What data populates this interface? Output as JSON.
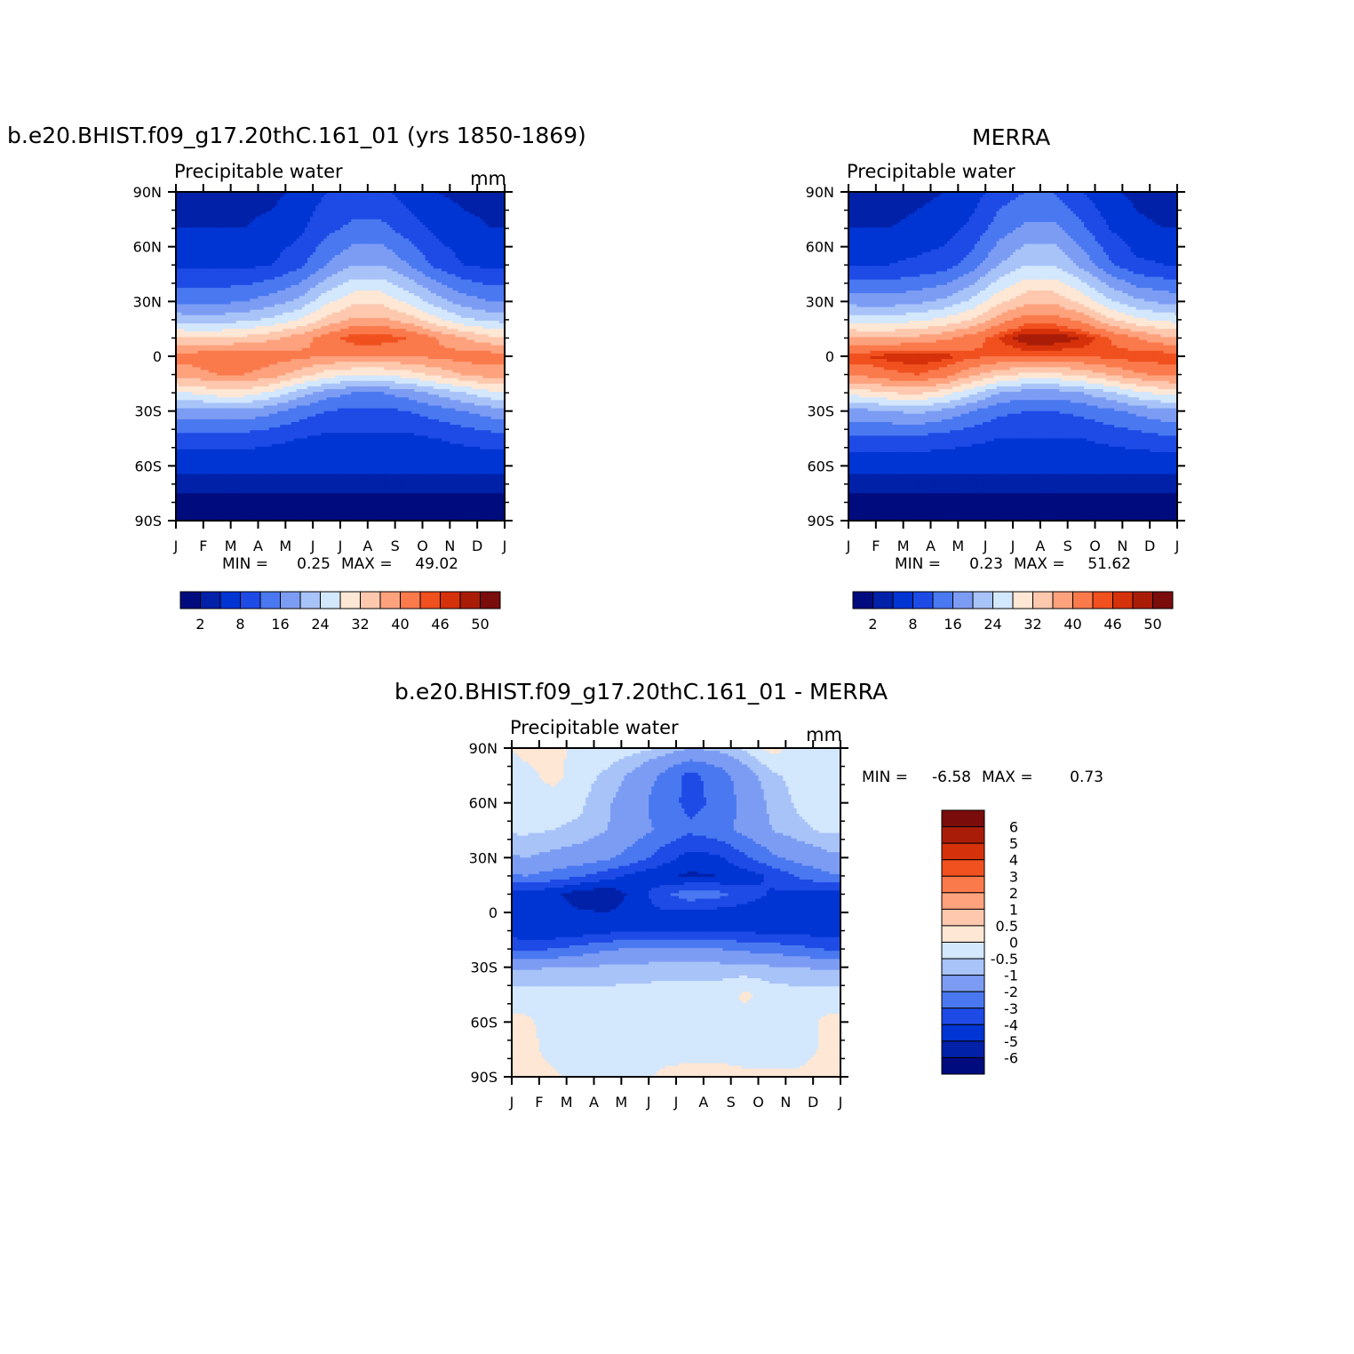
{
  "panels": {
    "model": {
      "title": "b.e20.BHIST.f09_g17.20thC.161_01 (yrs 1850-1869)",
      "variable": "Precipitable water",
      "units": "mm",
      "min_label": "MIN =",
      "min_value": "0.25",
      "max_label": "MAX =",
      "max_value": "49.02"
    },
    "obs": {
      "title": "MERRA",
      "variable": "Precipitable water",
      "units": "",
      "min_label": "MIN =",
      "min_value": "0.23",
      "max_label": "MAX =",
      "max_value": "51.62"
    },
    "diff": {
      "title": "b.e20.BHIST.f09_g17.20thC.161_01 - MERRA",
      "variable": "Precipitable water",
      "units": "mm",
      "min_label": "MIN =",
      "min_value": "-6.58",
      "max_label": "MAX =",
      "max_value": "0.73"
    }
  },
  "chart_data": [
    {
      "type": "heatmap",
      "id": "model",
      "title": "b.e20.BHIST.f09_g17.20thC.161_01 (yrs 1850-1869)",
      "subtitle": "Precipitable water",
      "units": "mm",
      "x_ticks": [
        "J",
        "F",
        "M",
        "A",
        "M",
        "J",
        "J",
        "A",
        "S",
        "O",
        "N",
        "D",
        "J"
      ],
      "y_ticks": [
        "90N",
        "60N",
        "30N",
        "0",
        "30S",
        "60S",
        "90S"
      ],
      "y_values": [
        90,
        60,
        30,
        0,
        -30,
        -60,
        -90
      ],
      "ylim": [
        -90,
        90
      ],
      "xlim": [
        0,
        12
      ],
      "min": 0.25,
      "max": 49.02,
      "colorbar": {
        "orientation": "horizontal",
        "labels": [
          "2",
          "8",
          "16",
          "24",
          "32",
          "40",
          "46",
          "50"
        ],
        "colors": [
          "#000C7D",
          "#0021A8",
          "#0035D3",
          "#1E4BE6",
          "#4A78F0",
          "#7C9CF4",
          "#A8C3F8",
          "#D3E7FD",
          "#FEE7D4",
          "#FDC8AE",
          "#FDA27D",
          "#FA7A4C",
          "#F1501F",
          "#D5310A",
          "#A91D08",
          "#7B0C0C"
        ],
        "boundaries": [
          0,
          2,
          4,
          8,
          12,
          16,
          20,
          24,
          28,
          32,
          36,
          40,
          44,
          46,
          48,
          50,
          52
        ]
      },
      "sampled_values": {
        "lat": [
          90,
          70,
          50,
          30,
          20,
          10,
          0,
          -10,
          -20,
          -30,
          -45,
          -60,
          -75,
          -90
        ],
        "month_centers": [
          "J",
          "F",
          "M",
          "A",
          "M",
          "J",
          "J",
          "A",
          "S",
          "O",
          "N",
          "D"
        ],
        "values": [
          [
            3,
            3,
            3,
            3,
            5,
            8,
            9,
            9,
            6,
            4,
            3,
            3
          ],
          [
            4,
            4,
            4,
            5,
            7,
            11,
            13,
            13,
            10,
            7,
            5,
            4
          ],
          [
            7,
            7,
            7,
            8,
            11,
            16,
            20,
            20,
            16,
            11,
            8,
            7
          ],
          [
            15,
            15,
            16,
            18,
            21,
            27,
            31,
            31,
            27,
            22,
            18,
            16
          ],
          [
            22,
            22,
            23,
            25,
            28,
            33,
            37,
            37,
            34,
            29,
            25,
            23
          ],
          [
            32,
            32,
            33,
            35,
            38,
            42,
            46,
            46,
            44,
            40,
            36,
            33
          ],
          [
            42,
            43,
            43,
            42,
            41,
            40,
            40,
            40,
            40,
            41,
            42,
            42
          ],
          [
            38,
            40,
            40,
            38,
            34,
            30,
            28,
            28,
            30,
            33,
            36,
            38
          ],
          [
            28,
            30,
            30,
            27,
            22,
            18,
            16,
            16,
            18,
            21,
            24,
            27
          ],
          [
            18,
            19,
            19,
            17,
            14,
            12,
            11,
            11,
            12,
            14,
            16,
            18
          ],
          [
            10,
            10,
            10,
            9,
            8,
            7,
            7,
            7,
            7,
            8,
            9,
            10
          ],
          [
            5,
            5,
            5,
            5,
            5,
            5,
            5,
            5,
            5,
            5,
            5,
            5
          ],
          [
            2,
            2,
            2,
            2,
            2,
            2,
            2,
            2,
            2,
            2,
            2,
            2
          ],
          [
            0.5,
            0.5,
            0.5,
            0.5,
            0.5,
            0.5,
            0.5,
            0.5,
            0.5,
            0.5,
            0.5,
            0.5
          ]
        ]
      }
    },
    {
      "type": "heatmap",
      "id": "obs",
      "title": "MERRA",
      "subtitle": "Precipitable water",
      "x_ticks": [
        "J",
        "F",
        "M",
        "A",
        "M",
        "J",
        "J",
        "A",
        "S",
        "O",
        "N",
        "D",
        "J"
      ],
      "y_ticks": [
        "90N",
        "60N",
        "30N",
        "0",
        "30S",
        "60S",
        "90S"
      ],
      "y_values": [
        90,
        60,
        30,
        0,
        -30,
        -60,
        -90
      ],
      "ylim": [
        -90,
        90
      ],
      "xlim": [
        0,
        12
      ],
      "min": 0.23,
      "max": 51.62,
      "colorbar": {
        "orientation": "horizontal",
        "labels": [
          "2",
          "8",
          "16",
          "24",
          "32",
          "40",
          "46",
          "50"
        ],
        "colors": [
          "#000C7D",
          "#0021A8",
          "#0035D3",
          "#1E4BE6",
          "#4A78F0",
          "#7C9CF4",
          "#A8C3F8",
          "#D3E7FD",
          "#FEE7D4",
          "#FDC8AE",
          "#FDA27D",
          "#FA7A4C",
          "#F1501F",
          "#D5310A",
          "#A91D08",
          "#7B0C0C"
        ],
        "boundaries": [
          0,
          2,
          4,
          8,
          12,
          16,
          20,
          24,
          28,
          32,
          36,
          40,
          44,
          46,
          48,
          50,
          52
        ]
      },
      "sampled_values": {
        "lat": [
          90,
          70,
          50,
          30,
          20,
          10,
          0,
          -10,
          -20,
          -30,
          -45,
          -60,
          -75,
          -90
        ],
        "month_centers": [
          "J",
          "F",
          "M",
          "A",
          "M",
          "J",
          "J",
          "A",
          "S",
          "O",
          "N",
          "D"
        ],
        "values": [
          [
            2,
            2,
            3,
            4,
            6,
            10,
            12,
            12,
            8,
            5,
            3,
            2
          ],
          [
            4,
            4,
            5,
            6,
            9,
            14,
            17,
            17,
            13,
            8,
            5,
            4
          ],
          [
            8,
            8,
            9,
            10,
            14,
            20,
            24,
            24,
            19,
            13,
            9,
            8
          ],
          [
            18,
            18,
            19,
            21,
            25,
            31,
            35,
            35,
            31,
            25,
            21,
            19
          ],
          [
            26,
            26,
            27,
            29,
            32,
            38,
            42,
            42,
            39,
            33,
            29,
            27
          ],
          [
            36,
            36,
            37,
            39,
            42,
            46,
            50,
            50,
            48,
            44,
            40,
            37
          ],
          [
            46,
            47,
            48,
            47,
            45,
            44,
            44,
            44,
            44,
            45,
            46,
            46
          ],
          [
            41,
            43,
            44,
            42,
            37,
            33,
            31,
            31,
            33,
            36,
            39,
            41
          ],
          [
            30,
            32,
            33,
            30,
            25,
            20,
            18,
            18,
            20,
            23,
            27,
            29
          ],
          [
            19,
            20,
            21,
            19,
            16,
            13,
            12,
            12,
            13,
            15,
            17,
            19
          ],
          [
            11,
            11,
            11,
            10,
            9,
            8,
            8,
            8,
            8,
            9,
            10,
            11
          ],
          [
            5,
            5,
            5,
            5,
            5,
            5,
            5,
            5,
            5,
            5,
            5,
            5
          ],
          [
            2,
            2,
            2,
            2,
            2,
            2,
            2,
            2,
            2,
            2,
            2,
            2
          ],
          [
            0.5,
            0.5,
            0.5,
            0.5,
            0.5,
            0.5,
            0.5,
            0.5,
            0.5,
            0.5,
            0.5,
            0.5
          ]
        ]
      }
    },
    {
      "type": "heatmap",
      "id": "diff",
      "title": "b.e20.BHIST.f09_g17.20thC.161_01 - MERRA",
      "subtitle": "Precipitable water",
      "units": "mm",
      "x_ticks": [
        "J",
        "F",
        "M",
        "A",
        "M",
        "J",
        "J",
        "A",
        "S",
        "O",
        "N",
        "D",
        "J"
      ],
      "y_ticks": [
        "90N",
        "60N",
        "30N",
        "0",
        "30S",
        "60S",
        "90S"
      ],
      "y_values": [
        90,
        60,
        30,
        0,
        -30,
        -60,
        -90
      ],
      "ylim": [
        -90,
        90
      ],
      "xlim": [
        0,
        12
      ],
      "min": -6.58,
      "max": 0.73,
      "colorbar": {
        "orientation": "vertical",
        "labels": [
          "6",
          "5",
          "4",
          "3",
          "2",
          "1",
          "0.5",
          "0",
          "-0.5",
          "-1",
          "-2",
          "-3",
          "-4",
          "-5",
          "-6"
        ],
        "colors": [
          "#7B0C0C",
          "#A91D08",
          "#D5310A",
          "#F1501F",
          "#FA7A4C",
          "#FDA27D",
          "#FDC8AE",
          "#FEE7D4",
          "#D3E7FD",
          "#A8C3F8",
          "#7C9CF4",
          "#4A78F0",
          "#1E4BE6",
          "#0035D3",
          "#0021A8",
          "#000C7D"
        ],
        "boundaries": [
          7,
          6,
          5,
          4,
          3,
          2,
          1,
          0.5,
          0,
          -0.5,
          -1,
          -2,
          -3,
          -4,
          -5,
          -6,
          -7
        ]
      },
      "sampled_values": {
        "lat": [
          90,
          75,
          60,
          45,
          30,
          20,
          10,
          0,
          -10,
          -20,
          -30,
          -45,
          -60,
          -75,
          -90
        ],
        "month_centers": [
          "J",
          "F",
          "M",
          "A",
          "M",
          "J",
          "J",
          "A",
          "S",
          "O",
          "N",
          "D"
        ],
        "values": [
          [
            0.2,
            0.2,
            -0.2,
            -0.2,
            -0.3,
            -0.5,
            -1.0,
            -0.8,
            -0.4,
            0.2,
            -0.2,
            -0.2
          ],
          [
            -0.2,
            0.2,
            -0.3,
            -0.6,
            -1.2,
            -2.2,
            -3.3,
            -2.6,
            -1.4,
            -0.6,
            -0.3,
            -0.2
          ],
          [
            -0.3,
            -0.3,
            -0.4,
            -0.9,
            -1.6,
            -2.5,
            -3.3,
            -2.8,
            -1.7,
            -0.8,
            -0.4,
            -0.3
          ],
          [
            -0.4,
            -0.5,
            -0.6,
            -1.0,
            -1.6,
            -2.2,
            -2.8,
            -2.4,
            -1.7,
            -1.0,
            -0.6,
            -0.4
          ],
          [
            -1.0,
            -1.2,
            -1.4,
            -1.8,
            -2.5,
            -3.5,
            -4.4,
            -4.2,
            -3.2,
            -2.2,
            -1.6,
            -1.2
          ],
          [
            -2.0,
            -2.4,
            -2.9,
            -3.6,
            -4.3,
            -4.8,
            -5.2,
            -5.0,
            -4.5,
            -3.8,
            -2.8,
            -2.2
          ],
          [
            -4.4,
            -4.8,
            -5.5,
            -5.8,
            -4.6,
            -3.3,
            -2.3,
            -2.6,
            -3.6,
            -4.1,
            -4.2,
            -4.4
          ],
          [
            -4.3,
            -4.6,
            -4.9,
            -5.0,
            -4.5,
            -4.1,
            -4.3,
            -4.4,
            -4.4,
            -4.5,
            -4.5,
            -4.4
          ],
          [
            -4.6,
            -4.8,
            -4.6,
            -4.3,
            -4.1,
            -4.0,
            -4.0,
            -4.1,
            -4.2,
            -4.3,
            -4.4,
            -4.5
          ],
          [
            -3.3,
            -3.0,
            -2.6,
            -2.1,
            -1.9,
            -1.8,
            -1.8,
            -2.0,
            -2.2,
            -2.4,
            -2.7,
            -3.1
          ],
          [
            -1.1,
            -1.0,
            -0.9,
            -0.9,
            -0.8,
            -0.7,
            -0.7,
            -0.7,
            -0.8,
            -0.9,
            -1.0,
            -1.1
          ],
          [
            -0.3,
            -0.3,
            -0.3,
            -0.3,
            -0.3,
            -0.3,
            -0.3,
            -0.3,
            0.1,
            -0.2,
            -0.3,
            -0.3
          ],
          [
            0.1,
            -0.2,
            -0.2,
            -0.2,
            -0.3,
            -0.2,
            -0.2,
            -0.2,
            -0.2,
            -0.2,
            -0.2,
            0.1
          ],
          [
            0.2,
            -0.2,
            -0.2,
            -0.2,
            -0.2,
            -0.2,
            -0.2,
            -0.2,
            -0.2,
            -0.2,
            -0.2,
            0.1
          ],
          [
            0.2,
            0.1,
            -0.2,
            -0.2,
            -0.2,
            0.1,
            0.2,
            0.2,
            0.1,
            0.1,
            0.1,
            0.2
          ]
        ]
      }
    }
  ]
}
